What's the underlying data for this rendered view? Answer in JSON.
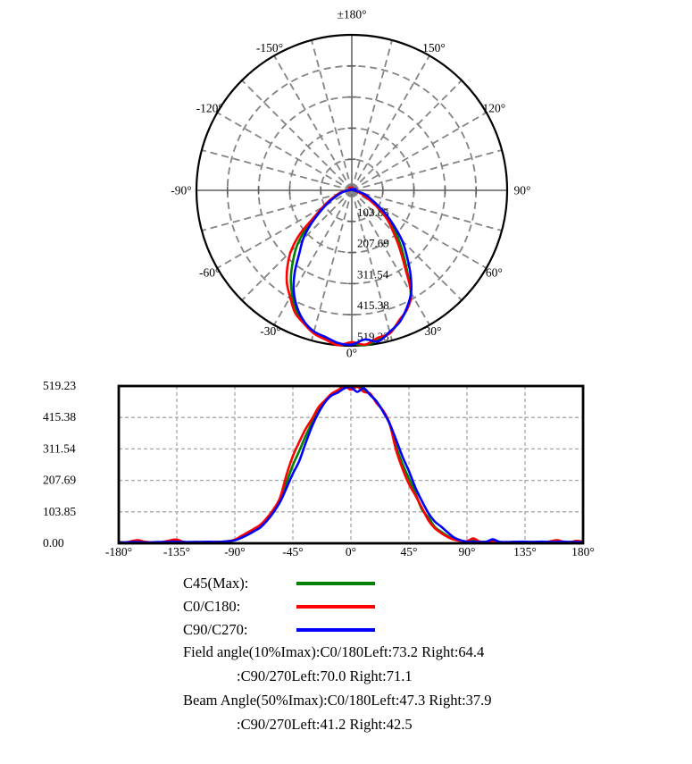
{
  "legend": {
    "items": [
      {
        "label": "C45(Max):",
        "color": "#008000"
      },
      {
        "label": "C0/C180:",
        "color": "#FF0000"
      },
      {
        "label": "C90/C270:",
        "color": "#0000FF"
      }
    ]
  },
  "notes": [
    {
      "text": "Field angle(10%Imax):C0/180Left:73.2 Right:64.4",
      "indent": false
    },
    {
      "text": ":C90/270Left:70.0 Right:71.1",
      "indent": true
    },
    {
      "text": "Beam Angle(50%Imax):C0/180Left:47.3 Right:37.9",
      "indent": false
    },
    {
      "text": ":C90/270Left:41.2 Right:42.5",
      "indent": true
    }
  ],
  "chart_data": {
    "type": "polar+line",
    "angle_start": -180,
    "angle_step": 5,
    "r_max": 519.23,
    "series": [
      {
        "name": "C45(Max)",
        "color": "#008000",
        "values": [
          3,
          3,
          5,
          6,
          4,
          3,
          3,
          4,
          6,
          7,
          4,
          3,
          4,
          4,
          4,
          4,
          5,
          6,
          11,
          20,
          32,
          44,
          58,
          80,
          106,
          142,
          200,
          258,
          305,
          355,
          400,
          440,
          470,
          492,
          503,
          515,
          512,
          519.23,
          507,
          492,
          466,
          437,
          394,
          320,
          262,
          214,
          166,
          112,
          86,
          54,
          38,
          24,
          13,
          8,
          6,
          9,
          6,
          4,
          8,
          4,
          3,
          4,
          4,
          4,
          4,
          4,
          4,
          5,
          7,
          4,
          4,
          5,
          4
        ]
      },
      {
        "name": "C0/C180",
        "color": "#FF0000",
        "values": [
          4,
          3,
          7,
          10,
          5,
          3,
          3,
          5,
          10,
          12,
          5,
          3,
          3,
          4,
          3,
          4,
          5,
          7,
          12,
          24,
          36,
          48,
          62,
          84,
          112,
          150,
          225,
          288,
          335,
          378,
          412,
          450,
          472,
          494,
          506,
          519,
          507,
          517,
          500,
          494,
          462,
          438,
          396,
          308,
          246,
          196,
          158,
          118,
          76,
          50,
          34,
          21,
          12,
          8,
          7,
          16,
          5,
          4,
          6,
          4,
          3,
          4,
          3,
          4,
          3,
          4,
          3,
          7,
          10,
          5,
          4,
          8,
          5
        ]
      },
      {
        "name": "C90/C270",
        "color": "#0000FF",
        "values": [
          3,
          3,
          4,
          4,
          3,
          3,
          4,
          4,
          5,
          5,
          4,
          4,
          4,
          4,
          5,
          4,
          5,
          7,
          10,
          18,
          28,
          40,
          53,
          75,
          102,
          136,
          182,
          230,
          272,
          332,
          388,
          432,
          466,
          488,
          498,
          512,
          515,
          500,
          512,
          489,
          468,
          434,
          396,
          342,
          286,
          238,
          184,
          140,
          100,
          72,
          55,
          36,
          19,
          10,
          5,
          5,
          4,
          5,
          13,
          5,
          4,
          4,
          5,
          5,
          4,
          5,
          5,
          4,
          5,
          5,
          4,
          4,
          3
        ]
      }
    ],
    "polar": {
      "zero_angle_position": "bottom",
      "angle_grid_step": 15,
      "angle_labels": [
        {
          "angle": 0,
          "label": "0°"
        },
        {
          "angle": 30,
          "label": "30°"
        },
        {
          "angle": 60,
          "label": "60°"
        },
        {
          "angle": 90,
          "label": "90°"
        },
        {
          "angle": 120,
          "label": "120°"
        },
        {
          "angle": 150,
          "label": "150°"
        },
        {
          "angle": 180,
          "label": "±180°"
        },
        {
          "angle": -30,
          "label": "-30°"
        },
        {
          "angle": -60,
          "label": "-60°"
        },
        {
          "angle": -90,
          "label": "-90°"
        },
        {
          "angle": -120,
          "label": "-120°"
        },
        {
          "angle": -150,
          "label": "-150°"
        }
      ],
      "ring_values": [
        103.85,
        207.69,
        311.54,
        415.38,
        519.23
      ],
      "ring_labels": [
        "103.85",
        "207.69",
        "311.54",
        "415.38",
        "519.23"
      ]
    },
    "cartesian": {
      "xlim": [
        -180,
        180
      ],
      "ylim": [
        0,
        519.23
      ],
      "grid": true,
      "x_tick_values": [
        -180,
        -135,
        -90,
        -45,
        0,
        45,
        90,
        135,
        180
      ],
      "x_tick_labels": [
        "-180°",
        "-135°",
        "-90°",
        "-45°",
        "0°",
        "45°",
        "90°",
        "135°",
        "180°"
      ],
      "y_tick_values": [
        0,
        103.85,
        207.69,
        311.54,
        415.38,
        519.23
      ],
      "y_tick_labels": [
        "0.00",
        "103.85",
        "207.69",
        "311.54",
        "415.38",
        "519.23"
      ]
    }
  }
}
